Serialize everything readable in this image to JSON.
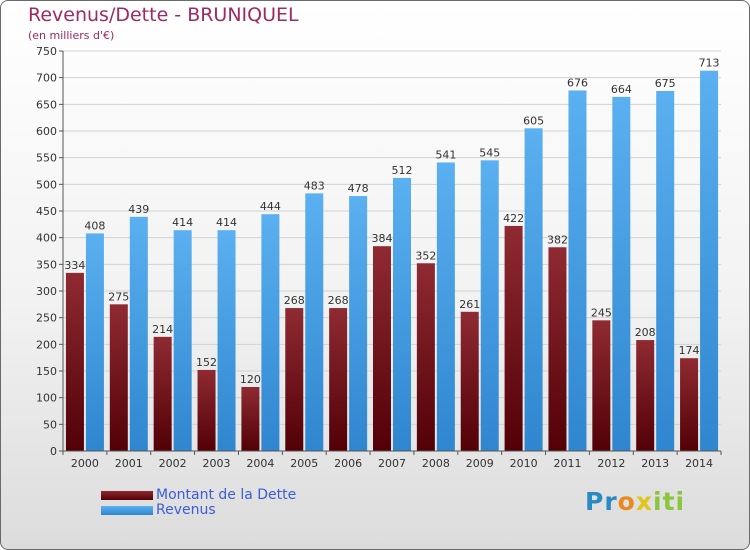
{
  "title": "Revenus/Dette - BRUNIQUEL",
  "subtitle": "(en milliers d'€)",
  "logo_text": "Proxiti",
  "colors": {
    "dette": "#7a0e18",
    "revenus": "#4aa3e8",
    "title": "#9e2a62",
    "legend_text": "#3d5dd6"
  },
  "chart_data": {
    "type": "bar",
    "title": "Revenus/Dette - BRUNIQUEL",
    "subtitle": "(en milliers d'€)",
    "xlabel": "",
    "ylabel": "",
    "categories": [
      "2000",
      "2001",
      "2002",
      "2003",
      "2004",
      "2005",
      "2006",
      "2007",
      "2008",
      "2009",
      "2010",
      "2011",
      "2012",
      "2013",
      "2014"
    ],
    "series": [
      {
        "name": "Montant de la Dette",
        "values": [
          334,
          275,
          214,
          152,
          120,
          268,
          268,
          384,
          352,
          261,
          422,
          382,
          245,
          208,
          174
        ]
      },
      {
        "name": "Revenus",
        "values": [
          408,
          439,
          414,
          414,
          444,
          483,
          478,
          512,
          541,
          545,
          605,
          676,
          664,
          675,
          713
        ]
      }
    ],
    "ylim": [
      0,
      750
    ],
    "yticks": [
      0,
      50,
      100,
      150,
      200,
      250,
      300,
      350,
      400,
      450,
      500,
      550,
      600,
      650,
      700,
      750
    ],
    "grid": "horizontal",
    "legend_placement": "bottom-left"
  }
}
